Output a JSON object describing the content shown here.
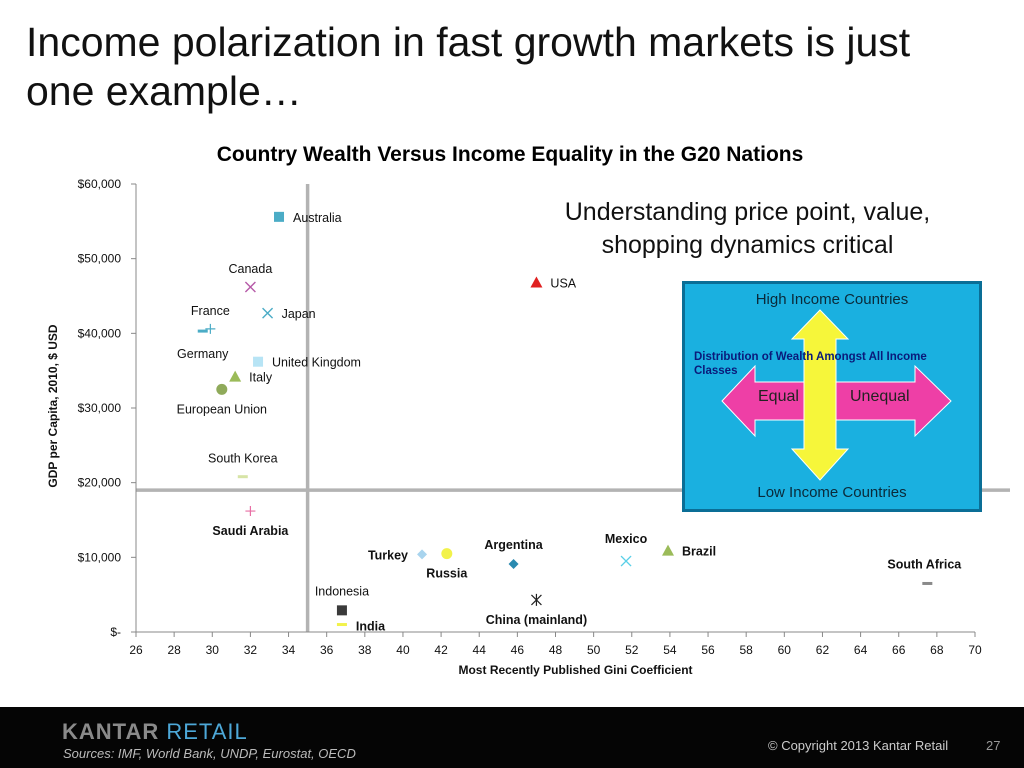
{
  "slide": {
    "title": "Income polarization in fast growth markets is just one example…",
    "callout": "Understanding price point, value, shopping dynamics critical",
    "box": {
      "top_label": "High Income Countries",
      "bottom_label": "Low Income Countries",
      "distribution_label": "Distribution of Wealth Amongst All Income Classes",
      "equal_label": "Equal",
      "unequal_label": "Unequal"
    },
    "footer": {
      "brand_part1": "KANTAR",
      "brand_part2": " RETAIL",
      "sources": "Sources:  IMF, World Bank, UNDP, Eurostat, OECD",
      "copyright": "© Copyright 2013 Kantar Retail",
      "page_number": "27"
    }
  },
  "chart_data": {
    "type": "scatter",
    "title": "Country Wealth Versus Income Equality in the G20 Nations",
    "xlabel": "Most Recently Published Gini Coefficient",
    "ylabel": "GDP per Capita, 2010, $ USD",
    "xlim": [
      26,
      70
    ],
    "ylim": [
      0,
      60000
    ],
    "xticks": [
      26,
      28,
      30,
      32,
      34,
      36,
      38,
      40,
      42,
      44,
      46,
      48,
      50,
      52,
      54,
      56,
      58,
      60,
      62,
      64,
      66,
      68,
      70
    ],
    "ytick_labels": [
      {
        "value": 0,
        "label": "$-"
      },
      {
        "value": 10000,
        "label": "$10,000"
      },
      {
        "value": 20000,
        "label": "$20,000"
      },
      {
        "value": 30000,
        "label": "$30,000"
      },
      {
        "value": 40000,
        "label": "$40,000"
      },
      {
        "value": 50000,
        "label": "$50,000"
      },
      {
        "value": 60000,
        "label": "$60,000"
      }
    ],
    "grid": false,
    "reference_lines": {
      "x": 35,
      "y": 19000
    },
    "points": [
      {
        "name": "Australia",
        "x": 33.5,
        "y": 55600,
        "marker": "square",
        "color": "#4bacc6",
        "bold": false
      },
      {
        "name": "Canada",
        "x": 32.0,
        "y": 46200,
        "marker": "x",
        "color": "#b65aa8",
        "bold": false
      },
      {
        "name": "Japan",
        "x": 32.9,
        "y": 42700,
        "marker": "x",
        "color": "#4bacc6",
        "bold": false
      },
      {
        "name": "France",
        "x": 29.9,
        "y": 40600,
        "marker": "plus",
        "color": "#4bacc6",
        "bold": false
      },
      {
        "name": "Germany",
        "x": 29.5,
        "y": 40300,
        "marker": "dash",
        "color": "#4bacc6",
        "bold": false
      },
      {
        "name": "United Kingdom",
        "x": 32.4,
        "y": 36200,
        "marker": "square",
        "color": "#b7e4f5",
        "bold": false
      },
      {
        "name": "Italy",
        "x": 31.2,
        "y": 34200,
        "marker": "triangle",
        "color": "#9bbb59",
        "bold": false
      },
      {
        "name": "European Union",
        "x": 30.5,
        "y": 32500,
        "marker": "circle",
        "color": "#8faa5a",
        "bold": false
      },
      {
        "name": "South Korea",
        "x": 31.6,
        "y": 20800,
        "marker": "dash",
        "color": "#d7e4a6",
        "bold": false
      },
      {
        "name": "Saudi Arabia",
        "x": 32.0,
        "y": 16200,
        "marker": "plus",
        "color": "#e86fa5",
        "bold": true
      },
      {
        "name": "USA",
        "x": 47.0,
        "y": 46800,
        "marker": "triangle",
        "color": "#e02020",
        "bold": false
      },
      {
        "name": "Turkey",
        "x": 41.0,
        "y": 10400,
        "marker": "diamond",
        "color": "#a8d4ee",
        "bold": true
      },
      {
        "name": "Russia",
        "x": 42.3,
        "y": 10500,
        "marker": "circle",
        "color": "#f2f24a",
        "bold": true
      },
      {
        "name": "Argentina",
        "x": 45.8,
        "y": 9100,
        "marker": "diamond",
        "color": "#2a8ab0",
        "bold": true
      },
      {
        "name": "Mexico",
        "x": 51.7,
        "y": 9500,
        "marker": "x",
        "color": "#5ad0e8",
        "bold": true
      },
      {
        "name": "Brazil",
        "x": 53.9,
        "y": 10900,
        "marker": "triangle",
        "color": "#9bbb59",
        "bold": true
      },
      {
        "name": "South Africa",
        "x": 67.5,
        "y": 6500,
        "marker": "dash",
        "color": "#8a8a8a",
        "bold": true
      },
      {
        "name": "China (mainland)",
        "x": 47.0,
        "y": 4300,
        "marker": "star",
        "color": "#222222",
        "bold": true
      },
      {
        "name": "Indonesia",
        "x": 36.8,
        "y": 2900,
        "marker": "square",
        "color": "#3a3a3a",
        "bold": false
      },
      {
        "name": "India",
        "x": 36.8,
        "y": 1000,
        "marker": "dash",
        "color": "#f2f24a",
        "bold": true
      }
    ]
  }
}
